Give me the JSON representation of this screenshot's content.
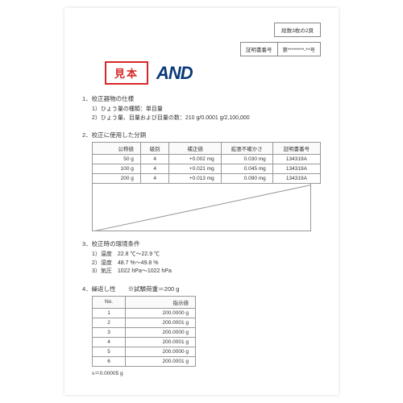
{
  "header": {
    "page_count": "総数3枚の2頁",
    "cert_label": "証明書番号",
    "cert_value": "第********-**号",
    "sample_stamp": "見本",
    "logo": "AND"
  },
  "sec1": {
    "title": "1．校正器物の仕様",
    "line1": "1）ひょう量の種類：単目量",
    "line2": "2）ひょう量、目量および目量の数：210 g/0.0001 g/2,100,000"
  },
  "sec2": {
    "title": "2．校正に使用した分銅",
    "cols": [
      "公称値",
      "級別",
      "補正値",
      "拡張不確かさ",
      "証明書番号"
    ],
    "rows": [
      [
        "50 g",
        "4",
        "+0.002 mg",
        "0.030 mg",
        "134319A"
      ],
      [
        "100 g",
        "4",
        "+0.021 mg",
        "0.045 mg",
        "134319A"
      ],
      [
        "200 g",
        "4",
        "+0.013 mg",
        "0.090 mg",
        "134319A"
      ]
    ]
  },
  "sec3": {
    "title": "3．校正時の環境条件",
    "line1": "1）温度　22.8 ℃～22.9 ℃",
    "line2": "2）湿度　48.7 %～49.8 %",
    "line3": "3）気圧　1022 hPa～1022 hPa"
  },
  "sec4": {
    "title": "4．繰返し性　　※試験荷重＝200 g",
    "cols": [
      "No.",
      "指示値"
    ],
    "rows": [
      [
        "1",
        "200.0000 g"
      ],
      [
        "2",
        "200.0001 g"
      ],
      [
        "3",
        "200.0000 g"
      ],
      [
        "4",
        "200.0001 g"
      ],
      [
        "5",
        "200.0000 g"
      ],
      [
        "6",
        "200.0001 g"
      ]
    ],
    "note": "s＝0.00005 g"
  }
}
